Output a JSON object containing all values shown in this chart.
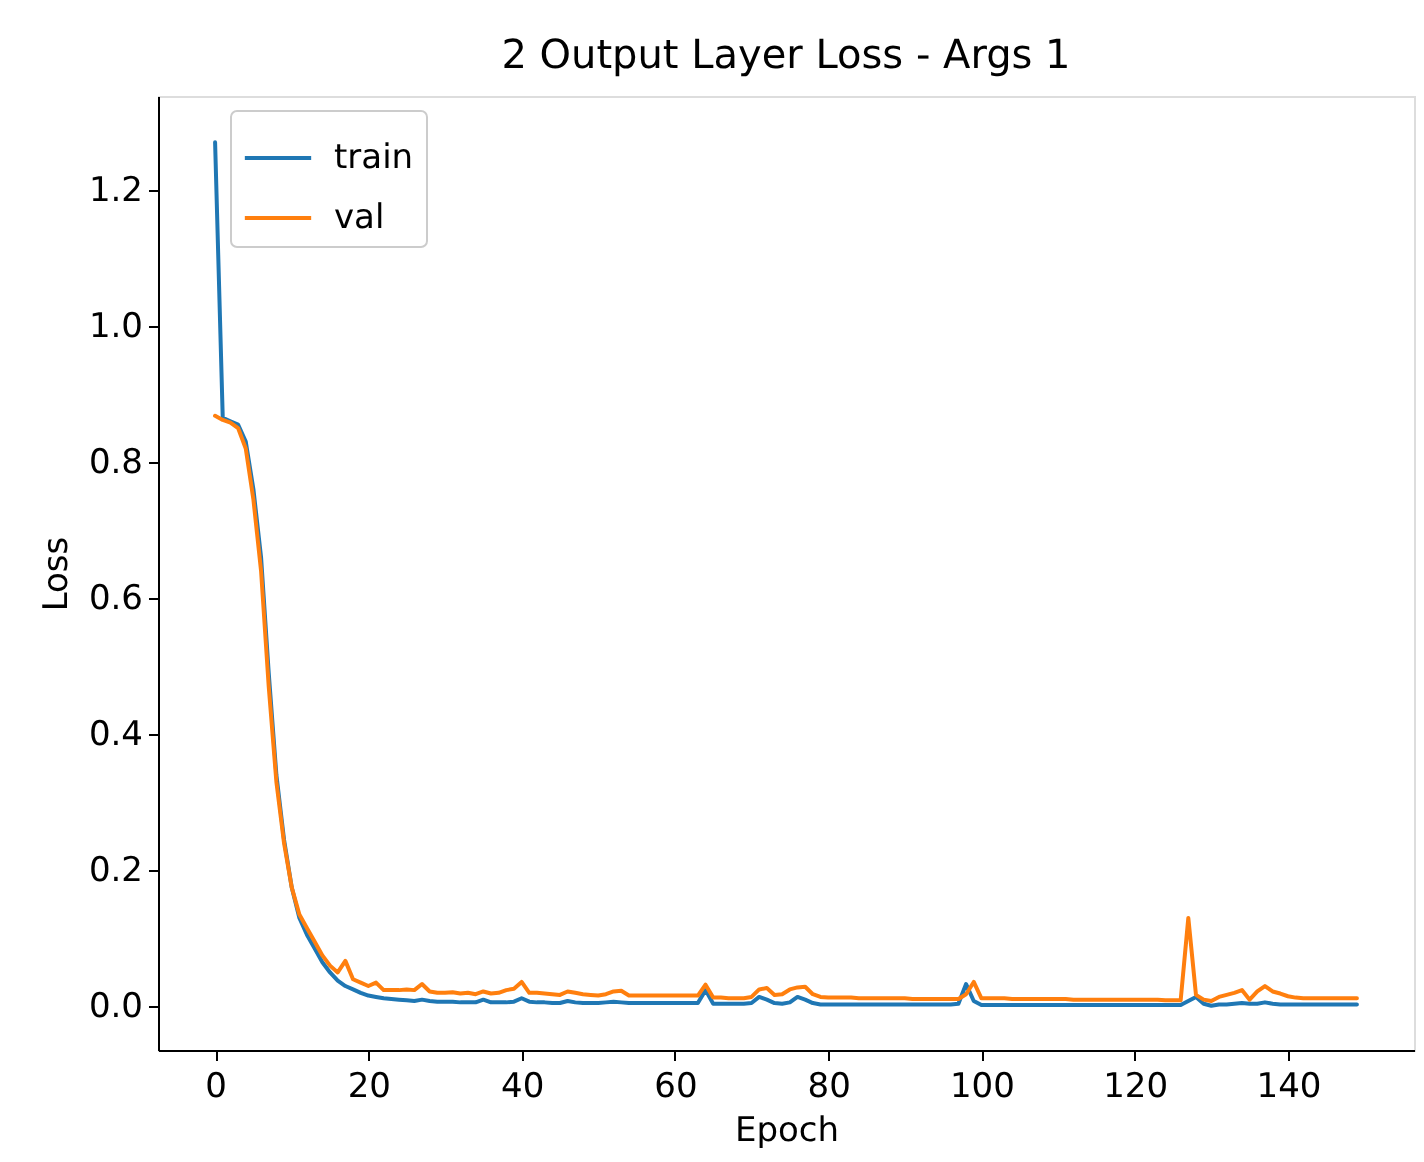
{
  "chart_data": {
    "type": "line",
    "title": "2 Output Layer Loss - Args 1",
    "xlabel": "Epoch",
    "ylabel": "Loss",
    "x": [
      0,
      1,
      2,
      3,
      4,
      5,
      6,
      7,
      8,
      9,
      10,
      11,
      12,
      13,
      14,
      15,
      16,
      17,
      18,
      19,
      20,
      21,
      22,
      23,
      24,
      25,
      26,
      27,
      28,
      29,
      30,
      31,
      32,
      33,
      34,
      35,
      36,
      37,
      38,
      39,
      40,
      41,
      42,
      43,
      44,
      45,
      46,
      47,
      48,
      49,
      50,
      51,
      52,
      53,
      54,
      55,
      56,
      57,
      58,
      59,
      60,
      61,
      62,
      63,
      64,
      65,
      66,
      67,
      68,
      69,
      70,
      71,
      72,
      73,
      74,
      75,
      76,
      77,
      78,
      79,
      80,
      81,
      82,
      83,
      84,
      85,
      86,
      87,
      88,
      89,
      90,
      91,
      92,
      93,
      94,
      95,
      96,
      97,
      98,
      99,
      100,
      101,
      102,
      103,
      104,
      105,
      106,
      107,
      108,
      109,
      110,
      111,
      112,
      113,
      114,
      115,
      116,
      117,
      118,
      119,
      120,
      121,
      122,
      123,
      124,
      125,
      126,
      127,
      128,
      129,
      130,
      131,
      132,
      133,
      134,
      135,
      136,
      137,
      138,
      139,
      140,
      141,
      142,
      143,
      144,
      145,
      146,
      147,
      148,
      149
    ],
    "series": [
      {
        "name": "train",
        "color": "#1f77b4",
        "values": [
          1.27,
          0.865,
          0.86,
          0.855,
          0.83,
          0.76,
          0.66,
          0.49,
          0.34,
          0.245,
          0.175,
          0.13,
          0.105,
          0.085,
          0.065,
          0.05,
          0.038,
          0.03,
          0.025,
          0.02,
          0.016,
          0.014,
          0.012,
          0.011,
          0.01,
          0.009,
          0.008,
          0.01,
          0.008,
          0.007,
          0.007,
          0.007,
          0.006,
          0.006,
          0.006,
          0.01,
          0.006,
          0.006,
          0.006,
          0.007,
          0.012,
          0.007,
          0.006,
          0.006,
          0.005,
          0.005,
          0.008,
          0.006,
          0.005,
          0.005,
          0.005,
          0.006,
          0.007,
          0.006,
          0.005,
          0.005,
          0.005,
          0.005,
          0.005,
          0.005,
          0.005,
          0.005,
          0.005,
          0.005,
          0.024,
          0.004,
          0.004,
          0.004,
          0.004,
          0.004,
          0.005,
          0.014,
          0.01,
          0.005,
          0.004,
          0.006,
          0.014,
          0.01,
          0.005,
          0.003,
          0.003,
          0.003,
          0.003,
          0.003,
          0.003,
          0.003,
          0.003,
          0.003,
          0.003,
          0.003,
          0.003,
          0.003,
          0.003,
          0.003,
          0.003,
          0.003,
          0.003,
          0.004,
          0.033,
          0.008,
          0.002,
          0.002,
          0.002,
          0.002,
          0.002,
          0.002,
          0.002,
          0.002,
          0.002,
          0.002,
          0.002,
          0.002,
          0.002,
          0.002,
          0.002,
          0.002,
          0.002,
          0.002,
          0.002,
          0.002,
          0.002,
          0.002,
          0.002,
          0.002,
          0.002,
          0.002,
          0.002,
          0.008,
          0.014,
          0.004,
          0.001,
          0.003,
          0.003,
          0.004,
          0.005,
          0.004,
          0.004,
          0.006,
          0.004,
          0.003,
          0.003,
          0.003,
          0.003,
          0.003,
          0.003,
          0.003,
          0.003,
          0.003,
          0.003,
          0.003
        ]
      },
      {
        "name": "val",
        "color": "#ff7f0e",
        "values": [
          0.868,
          0.862,
          0.858,
          0.85,
          0.82,
          0.745,
          0.64,
          0.47,
          0.33,
          0.24,
          0.175,
          0.135,
          0.115,
          0.095,
          0.075,
          0.06,
          0.05,
          0.067,
          0.04,
          0.035,
          0.03,
          0.035,
          0.024,
          0.024,
          0.024,
          0.025,
          0.024,
          0.033,
          0.022,
          0.02,
          0.02,
          0.021,
          0.019,
          0.02,
          0.018,
          0.022,
          0.019,
          0.02,
          0.024,
          0.026,
          0.036,
          0.02,
          0.02,
          0.019,
          0.018,
          0.017,
          0.022,
          0.02,
          0.018,
          0.017,
          0.016,
          0.018,
          0.022,
          0.023,
          0.016,
          0.016,
          0.016,
          0.016,
          0.016,
          0.016,
          0.016,
          0.016,
          0.016,
          0.016,
          0.032,
          0.013,
          0.013,
          0.012,
          0.012,
          0.012,
          0.014,
          0.025,
          0.027,
          0.017,
          0.018,
          0.025,
          0.028,
          0.029,
          0.018,
          0.014,
          0.013,
          0.013,
          0.013,
          0.013,
          0.012,
          0.012,
          0.012,
          0.012,
          0.012,
          0.012,
          0.012,
          0.011,
          0.011,
          0.011,
          0.011,
          0.011,
          0.011,
          0.011,
          0.018,
          0.036,
          0.012,
          0.012,
          0.012,
          0.012,
          0.011,
          0.011,
          0.011,
          0.011,
          0.011,
          0.011,
          0.011,
          0.011,
          0.01,
          0.01,
          0.01,
          0.01,
          0.01,
          0.01,
          0.01,
          0.01,
          0.01,
          0.01,
          0.01,
          0.01,
          0.009,
          0.009,
          0.009,
          0.13,
          0.017,
          0.01,
          0.008,
          0.014,
          0.017,
          0.02,
          0.024,
          0.01,
          0.022,
          0.03,
          0.022,
          0.019,
          0.015,
          0.013,
          0.012,
          0.012,
          0.012,
          0.012,
          0.012,
          0.012,
          0.012,
          0.012
        ]
      }
    ],
    "xlim": [
      -7.45,
      156.45
    ],
    "ylim": [
      -0.064,
      1.338
    ],
    "xticks": [
      0,
      20,
      40,
      60,
      80,
      100,
      120,
      140
    ],
    "yticks": [
      {
        "value": 0,
        "label": "0.0"
      },
      0.2,
      0.4,
      0.6,
      0.8,
      {
        "value": 1,
        "label": "1.0"
      },
      1.2
    ],
    "line_style": "solid",
    "legend": "top left"
  }
}
